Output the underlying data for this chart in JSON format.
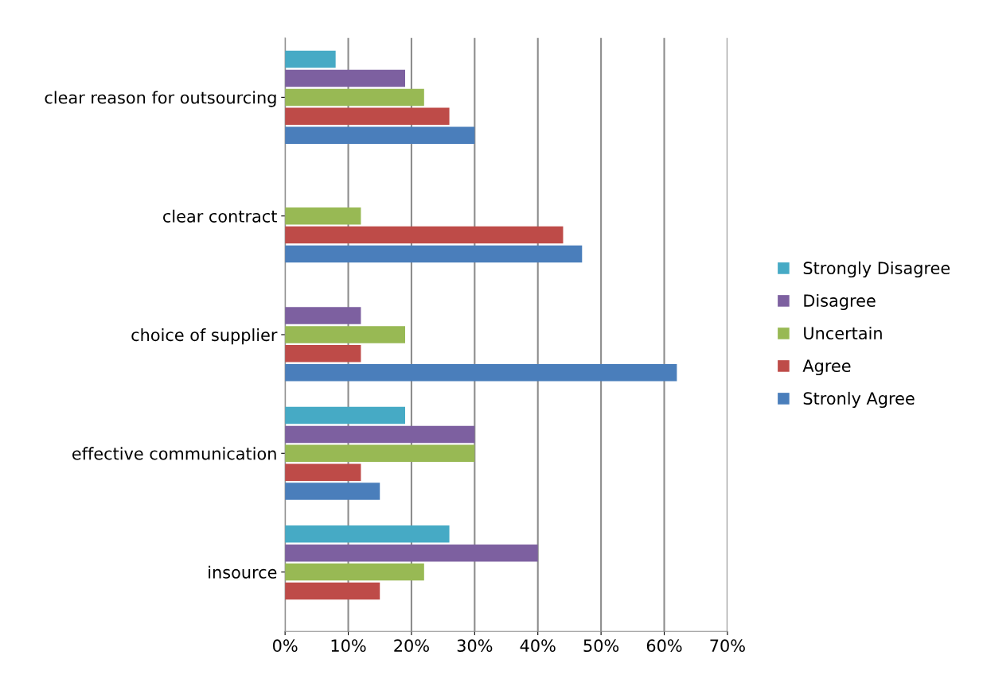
{
  "chart_data": {
    "type": "bar",
    "orientation": "horizontal",
    "categories": [
      "clear reason for outsourcing",
      "clear contract",
      "choice of supplier",
      "effective communication",
      "insource"
    ],
    "series": [
      {
        "name": "Stronly Agree",
        "color": "#4a7ebb",
        "values": [
          30,
          47,
          62,
          15,
          0
        ]
      },
      {
        "name": "Agree",
        "color": "#be4b48",
        "values": [
          26,
          44,
          12,
          12,
          15
        ]
      },
      {
        "name": "Uncertain",
        "color": "#98b954",
        "values": [
          22,
          12,
          19,
          30,
          22
        ]
      },
      {
        "name": "Disagree",
        "color": "#7d60a0",
        "values": [
          19,
          0,
          12,
          30,
          40
        ]
      },
      {
        "name": "Strongly Disagree",
        "color": "#46aac5",
        "values": [
          8,
          0,
          0,
          19,
          26
        ]
      }
    ],
    "xlim": [
      0,
      70
    ],
    "xticks": [
      {
        "value": 0,
        "label": "0%"
      },
      {
        "value": 10,
        "label": "10%"
      },
      {
        "value": 20,
        "label": "20%"
      },
      {
        "value": 30,
        "label": "30%"
      },
      {
        "value": 40,
        "label": "40%"
      },
      {
        "value": 50,
        "label": "50%"
      },
      {
        "value": 60,
        "label": "60%"
      },
      {
        "value": 70,
        "label": "70%"
      }
    ],
    "grid": "x",
    "legend": "right"
  }
}
